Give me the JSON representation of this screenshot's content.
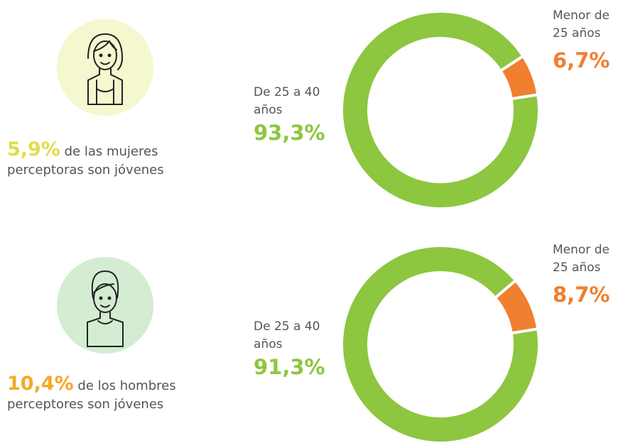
{
  "chart_data": [
    {
      "type": "donut",
      "categories": [
        "De 25 a 40 años",
        "Menor de 25 años"
      ],
      "values": [
        93.3,
        6.7
      ],
      "value_labels": [
        "93,3%",
        "6,7%"
      ],
      "colors": [
        "#8dc63f",
        "#f07f30"
      ],
      "highlight": "5,9%",
      "highlight_color": "#e2dc48",
      "caption": "de las mujeres perceptoras son jóvenes"
    },
    {
      "type": "donut",
      "categories": [
        "De 25 a 40 años",
        "Menor de 25 años"
      ],
      "values": [
        91.3,
        8.7
      ],
      "value_labels": [
        "91,3%",
        "8,7%"
      ],
      "colors": [
        "#8dc63f",
        "#f07f30"
      ],
      "highlight": "10,4%",
      "highlight_color": "#f6a828",
      "caption": "de los hombres perceptores son jóvenes"
    }
  ]
}
